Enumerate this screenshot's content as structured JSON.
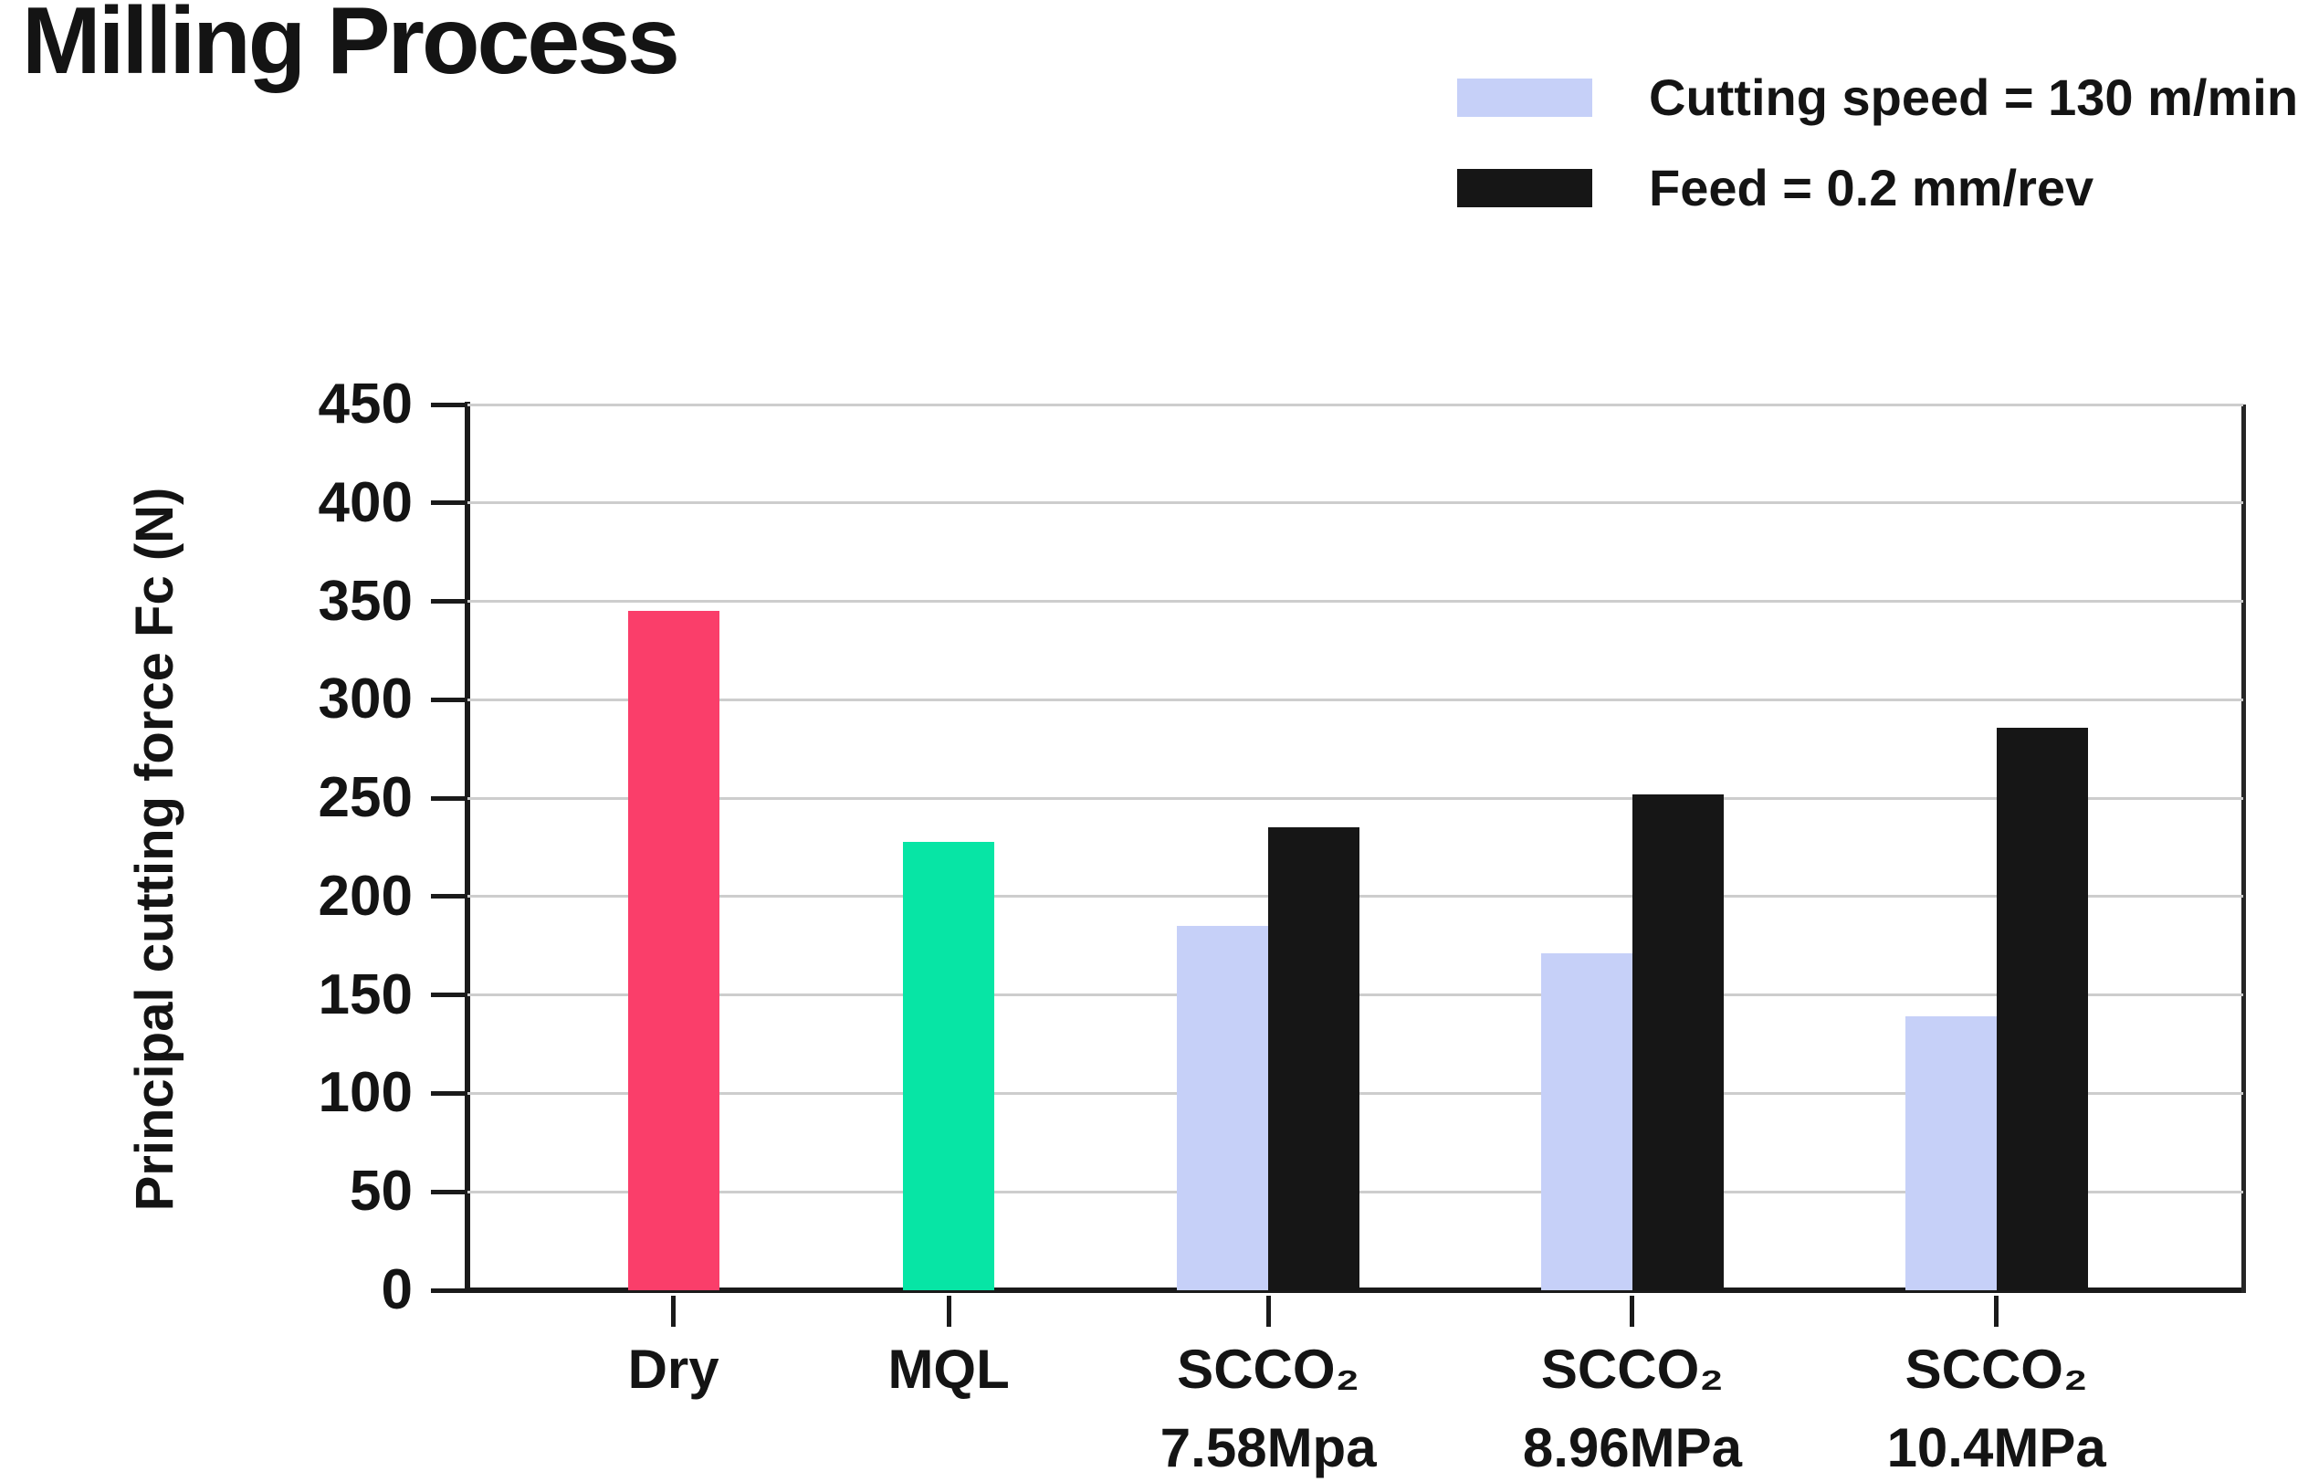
{
  "title": "Milling Process",
  "legend": {
    "items": [
      {
        "label": "Cutting speed = 130 m/min",
        "color": "#C6D0F8"
      },
      {
        "label": "Feed = 0.2 mm/rev",
        "color": "#161616"
      }
    ]
  },
  "chart_data": {
    "type": "bar",
    "title": "Milling Process",
    "xlabel": "",
    "ylabel": "Principal cutting force Fc (N)",
    "ylim": [
      0,
      450
    ],
    "yticks": [
      0,
      50,
      100,
      150,
      200,
      250,
      300,
      350,
      400,
      450
    ],
    "grid": true,
    "legend_position": "top-right",
    "legend": [
      {
        "label": "Cutting speed = 130 m/min",
        "color": "#C6D0F8"
      },
      {
        "label": "Feed = 0.2 mm/rev",
        "color": "#161616"
      }
    ],
    "colors": {
      "grid": "#CDCDCD",
      "axis": "#1A1A1A",
      "dry": "#FA3E6A",
      "mql": "#07E5A5",
      "cutting_speed_series": "#C6D0F8",
      "feed_series": "#161616"
    },
    "groups": [
      {
        "category": "Dry",
        "category_line2": "",
        "bars": [
          {
            "series": "Dry",
            "value": 345,
            "color": "#FA3E6A"
          }
        ]
      },
      {
        "category": "MQL",
        "category_line2": "",
        "bars": [
          {
            "series": "MQL",
            "value": 228,
            "color": "#07E5A5"
          }
        ]
      },
      {
        "category": "SCCO₂",
        "category_line2": "7.58Mpa",
        "bars": [
          {
            "series": "Cutting speed = 130 m/min",
            "value": 185,
            "color": "#C6D0F8"
          },
          {
            "series": "Feed = 0.2 mm/rev",
            "value": 235,
            "color": "#161616"
          }
        ]
      },
      {
        "category": "SCCO₂",
        "category_line2": "8.96MPa",
        "bars": [
          {
            "series": "Cutting speed = 130 m/min",
            "value": 171,
            "color": "#C6D0F8"
          },
          {
            "series": "Feed = 0.2 mm/rev",
            "value": 252,
            "color": "#161616"
          }
        ]
      },
      {
        "category": "SCCO₂",
        "category_line2": "10.4MPa",
        "bars": [
          {
            "series": "Cutting speed = 130 m/min",
            "value": 139,
            "color": "#C6D0F8"
          },
          {
            "series": "Feed = 0.2 mm/rev",
            "value": 286,
            "color": "#161616"
          }
        ]
      }
    ]
  }
}
